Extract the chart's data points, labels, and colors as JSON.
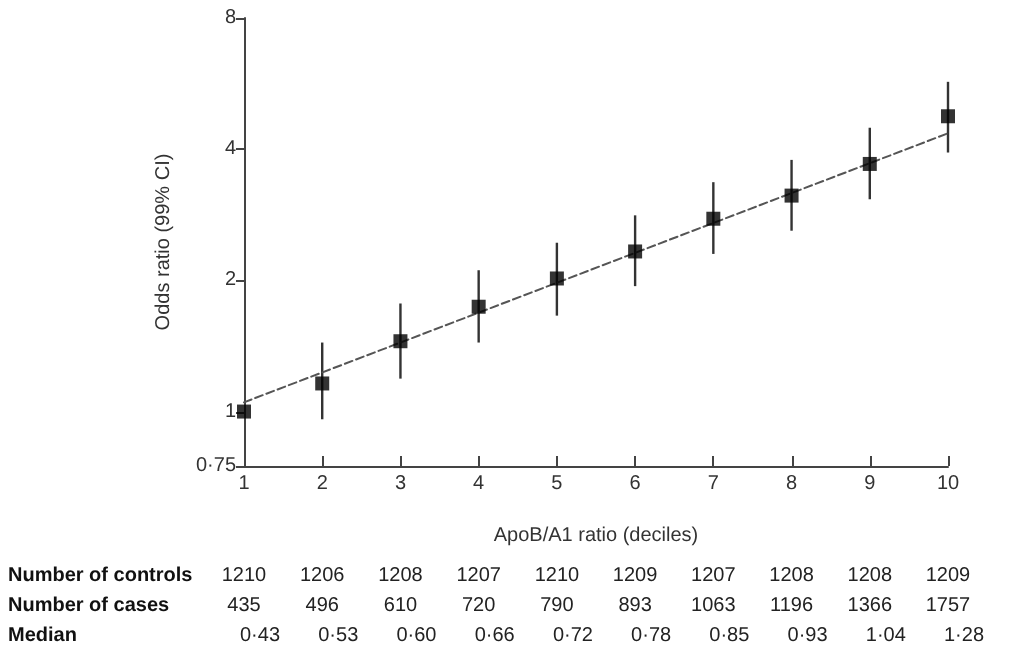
{
  "chart_data": {
    "type": "scatter",
    "xlabel": "ApoB/A1 ratio (deciles)",
    "ylabel": "Odds ratio (99% CI)",
    "x": [
      1,
      2,
      3,
      4,
      5,
      6,
      7,
      8,
      9,
      10
    ],
    "series": [
      {
        "color": "#000000",
        "marker": "square",
        "values": [
          1.0,
          1.16,
          1.45,
          1.74,
          2.02,
          2.33,
          2.77,
          3.13,
          3.7,
          4.76
        ],
        "errors": [
          null,
          [
            0.96,
            1.44
          ],
          [
            1.19,
            1.77
          ],
          [
            1.44,
            2.11
          ],
          [
            1.66,
            2.44
          ],
          [
            1.94,
            2.82
          ],
          [
            2.3,
            3.36
          ],
          [
            2.6,
            3.78
          ],
          [
            3.07,
            4.48
          ],
          [
            3.93,
            5.71
          ]
        ]
      },
      {
        "type": "line",
        "color": "#555555",
        "line_style": "dashed",
        "marker": "none",
        "x": [
          1,
          10
        ],
        "values": [
          1.05,
          4.35
        ]
      }
    ],
    "log": "y",
    "xlim": [
      1,
      10
    ],
    "xticks": [
      1,
      2,
      3,
      4,
      5,
      6,
      7,
      8,
      9,
      10
    ],
    "ylim": [
      0.75,
      8
    ],
    "yticks": [
      {
        "value": 0.75,
        "label": "0·75"
      },
      1,
      2,
      4,
      8
    ],
    "grid": false,
    "annotations": [
      "Number of controls",
      "1210",
      "1206",
      "1208",
      "1207",
      "1210",
      "1209",
      "1207",
      "1208",
      "1208",
      "1209",
      "Number of cases",
      "435",
      "496",
      "610",
      "720",
      "790",
      "893",
      "1063",
      "1196",
      "1366",
      "1757",
      "Median",
      "0·43",
      "0·53",
      "0·60",
      "0·66",
      "0·72",
      "0·78",
      "0·85",
      "0·93",
      "1·04",
      "1·28"
    ]
  }
}
